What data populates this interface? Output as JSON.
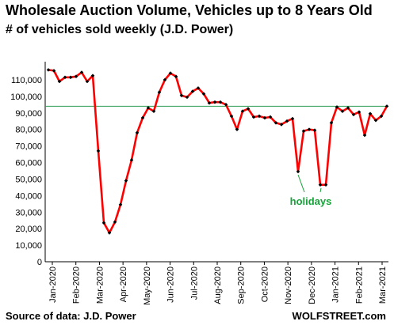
{
  "chart_data": {
    "type": "line",
    "title": "Wholesale Auction Volume, Vehicles up to 8 Years Old",
    "subtitle": "# of vehicles sold weekly (J.D. Power)",
    "source": "Source of data: J.D. Power",
    "brand": "WOLFSTREET.com",
    "ylim": [
      0,
      120000
    ],
    "y_ticks": [
      "0",
      "10,000",
      "20,000",
      "30,000",
      "40,000",
      "50,000",
      "60,000",
      "70,000",
      "80,000",
      "90,000",
      "100,000",
      "110,000"
    ],
    "x_ticks": [
      "Jan-2020",
      "Feb-2020",
      "Mar-2020",
      "Apr-2020",
      "May-2020",
      "Jun-2020",
      "Jul-2020",
      "Aug-2020",
      "Sep-2020",
      "Oct-2020",
      "Nov-2020",
      "Dec-2020",
      "Jan-2021",
      "Feb-2021",
      "Mar-2021"
    ],
    "reference_line": 94000,
    "line_color": "#ff0000",
    "marker_color": "#000000",
    "reference_color": "#2e9e55",
    "annotation": "holidays",
    "annotation_color": "#1aa33b",
    "series": [
      {
        "values": [
          116000,
          115500,
          109000,
          111500,
          111500,
          112000,
          114500,
          109000,
          112500,
          67000,
          23500,
          17500,
          24000,
          34500,
          49000,
          61500,
          78000,
          87000,
          93000,
          91000,
          102500,
          110000,
          114000,
          112000,
          100500,
          99500,
          103000,
          105000,
          101500,
          96000,
          96500,
          96500,
          95000,
          88000,
          80000,
          91000,
          92500,
          87500,
          88000,
          87000,
          87500,
          84000,
          83000,
          85000,
          86500,
          54500,
          79000,
          80000,
          79500,
          46500,
          46500,
          84000,
          93500,
          91000,
          93000,
          89000,
          90500,
          76500,
          89500,
          85500,
          88000,
          94000
        ]
      }
    ]
  }
}
